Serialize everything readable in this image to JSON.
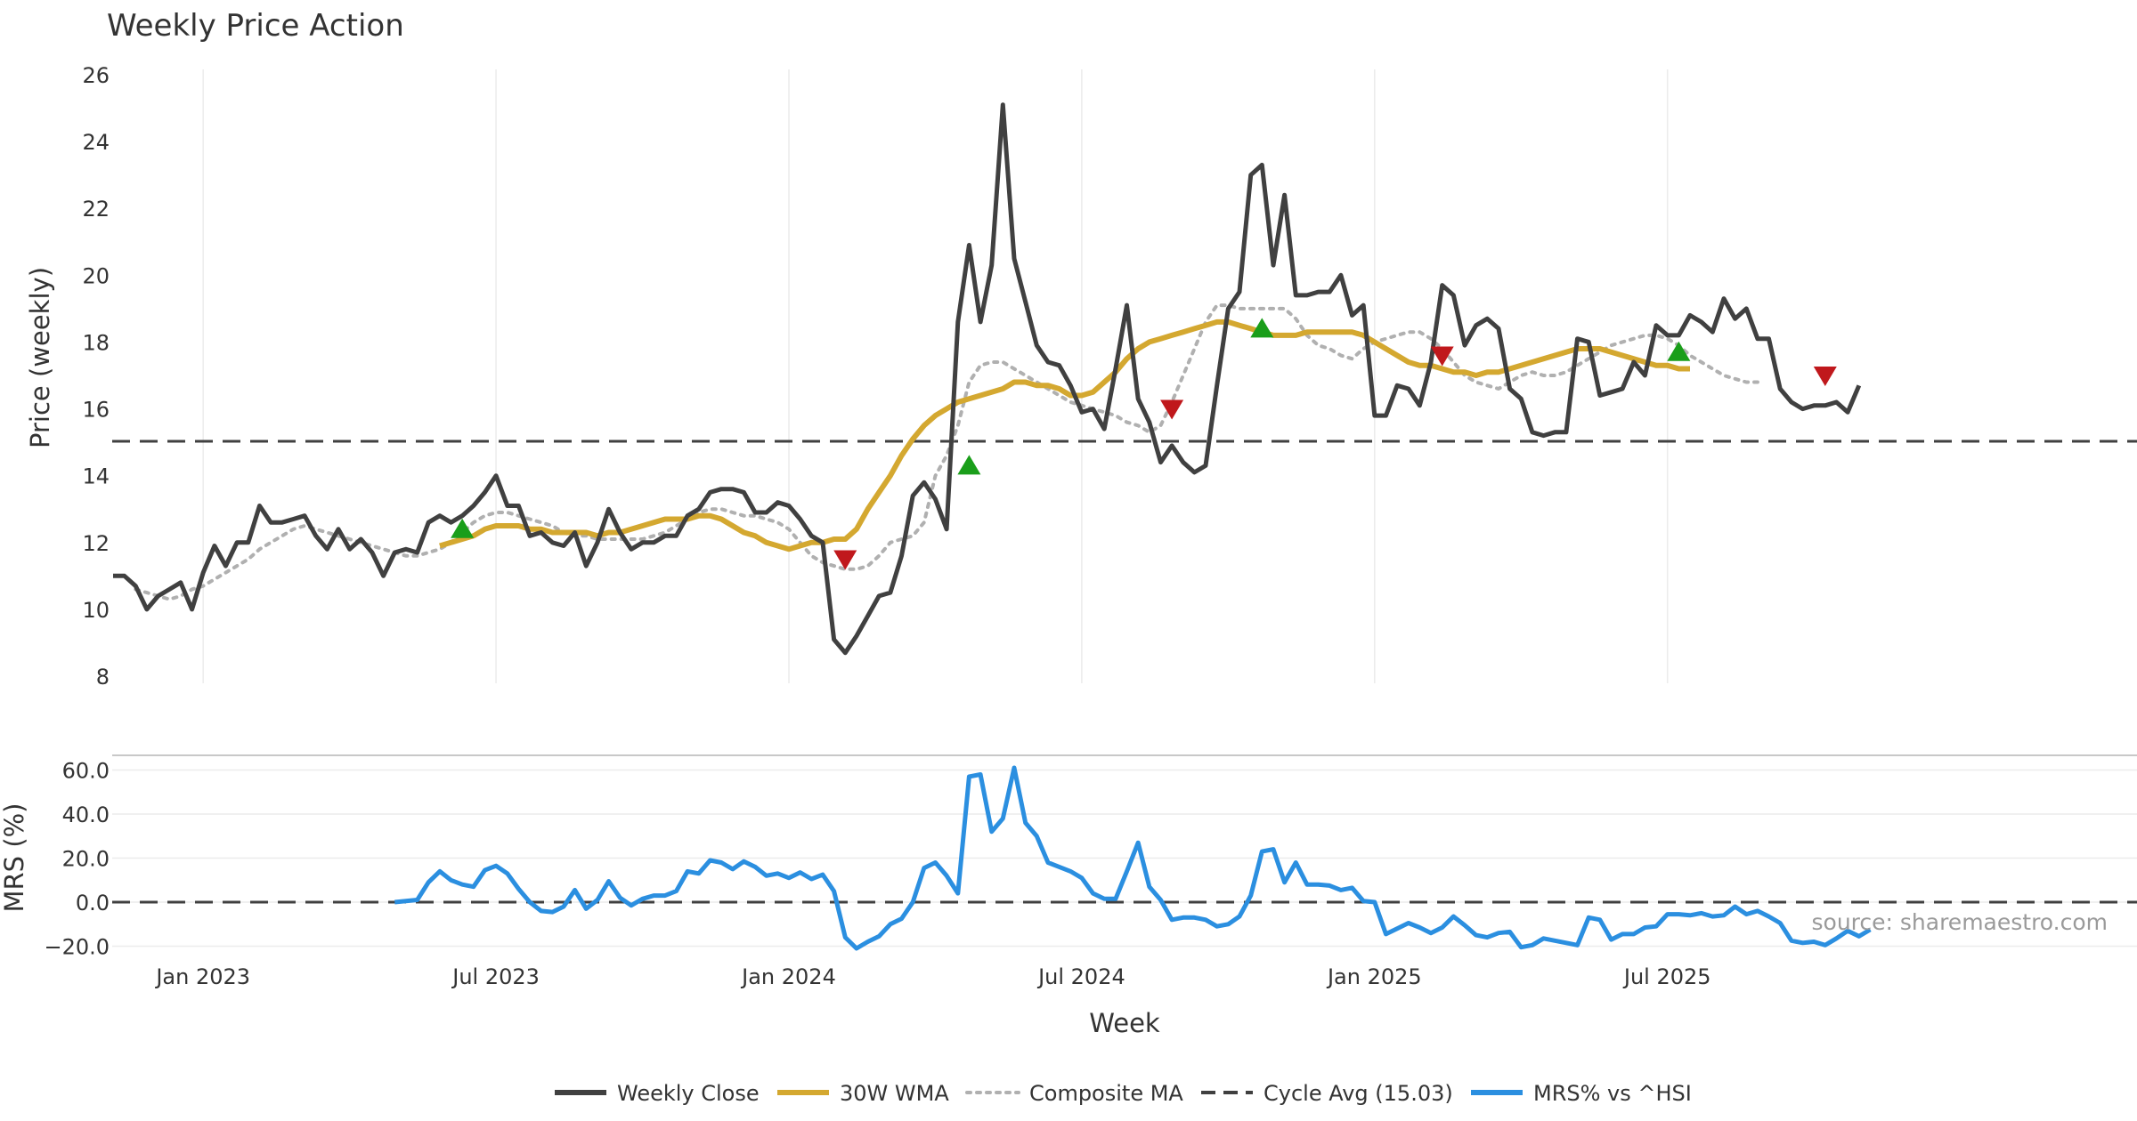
{
  "chart_data": {
    "type": "line",
    "title": "Weekly Price Action",
    "xlabel": "Week",
    "source_note": "source: sharemaestro.com",
    "x_ticks": [
      "Jan 2023",
      "Jul 2023",
      "Jan 2024",
      "Jul 2024",
      "Jan 2025",
      "Jul 2025"
    ],
    "x_domain_weeks": [
      0,
      182
    ],
    "x_tick_weeks": [
      8,
      34,
      60,
      86,
      112,
      138
    ],
    "price_panel": {
      "ylabel": "Price (weekly)",
      "ylim": [
        8,
        26
      ],
      "yticks": [
        "8",
        "10",
        "12",
        "14",
        "16",
        "18",
        "20",
        "22",
        "24",
        "26"
      ],
      "cycle_avg": 15.03,
      "series": [
        {
          "name": "Weekly Close",
          "color": "#404040",
          "start_week": 0,
          "values": [
            11.0,
            11.0,
            10.7,
            10.0,
            10.4,
            10.6,
            10.8,
            10.0,
            11.1,
            11.9,
            11.3,
            12.0,
            12.0,
            13.1,
            12.6,
            12.6,
            12.7,
            12.8,
            12.2,
            11.8,
            12.4,
            11.8,
            12.1,
            11.7,
            11.0,
            11.7,
            11.8,
            11.7,
            12.6,
            12.8,
            12.6,
            12.8,
            13.1,
            13.5,
            14.0,
            13.1,
            13.1,
            12.2,
            12.3,
            12.0,
            11.9,
            12.3,
            11.3,
            12.0,
            13.0,
            12.3,
            11.8,
            12.0,
            12.0,
            12.2,
            12.2,
            12.8,
            13.0,
            13.5,
            13.6,
            13.6,
            13.5,
            12.9,
            12.9,
            13.2,
            13.1,
            12.7,
            12.2,
            12.0,
            9.1,
            8.7,
            9.2,
            9.8,
            10.4,
            10.5,
            11.6,
            13.4,
            13.8,
            13.3,
            12.4,
            18.6,
            20.9,
            18.6,
            20.3,
            25.1,
            20.5,
            19.2,
            17.9,
            17.4,
            17.3,
            16.7,
            15.9,
            16.0,
            15.4,
            17.2,
            19.1,
            16.3,
            15.6,
            14.4,
            14.9,
            14.4,
            14.1,
            14.3,
            16.7,
            19.0,
            19.5,
            23.0,
            23.3,
            20.3,
            22.4,
            19.4,
            19.4,
            19.5,
            19.5,
            20.0,
            18.8,
            19.1,
            15.8,
            15.8,
            16.7,
            16.6,
            16.1,
            17.4,
            19.7,
            19.4,
            17.9,
            18.5,
            18.7,
            18.4,
            16.6,
            16.3,
            15.3,
            15.2,
            15.3,
            15.3,
            18.1,
            18.0,
            16.4,
            16.5,
            16.6,
            17.4,
            17.0,
            18.5,
            18.2,
            18.2,
            18.8,
            18.6,
            18.3,
            19.3,
            18.7,
            19.0,
            18.1,
            18.1,
            16.6,
            16.2,
            16.0,
            16.1,
            16.1,
            16.2,
            15.9,
            16.7
          ]
        },
        {
          "name": "30W WMA",
          "color": "#d4a830",
          "start_week": 29,
          "values": [
            11.9,
            12.0,
            12.1,
            12.2,
            12.4,
            12.5,
            12.5,
            12.5,
            12.4,
            12.4,
            12.3,
            12.3,
            12.3,
            12.3,
            12.2,
            12.3,
            12.3,
            12.4,
            12.5,
            12.6,
            12.7,
            12.7,
            12.7,
            12.8,
            12.8,
            12.7,
            12.5,
            12.3,
            12.2,
            12.0,
            11.9,
            11.8,
            11.9,
            12.0,
            12.0,
            12.1,
            12.1,
            12.4,
            13.0,
            13.5,
            14.0,
            14.6,
            15.1,
            15.5,
            15.8,
            16.0,
            16.2,
            16.3,
            16.4,
            16.5,
            16.6,
            16.8,
            16.8,
            16.7,
            16.7,
            16.6,
            16.4,
            16.4,
            16.5,
            16.8,
            17.1,
            17.5,
            17.8,
            18.0,
            18.1,
            18.2,
            18.3,
            18.4,
            18.5,
            18.6,
            18.6,
            18.5,
            18.4,
            18.3,
            18.2,
            18.2,
            18.2,
            18.3,
            18.3,
            18.3,
            18.3,
            18.3,
            18.2,
            18.0,
            17.8,
            17.6,
            17.4,
            17.3,
            17.3,
            17.2,
            17.1,
            17.1,
            17.0,
            17.1,
            17.1,
            17.2,
            17.3,
            17.4,
            17.5,
            17.6,
            17.7,
            17.8,
            17.8,
            17.8,
            17.7,
            17.6,
            17.5,
            17.4,
            17.3,
            17.3,
            17.2,
            17.2
          ]
        },
        {
          "name": "Composite MA",
          "color": "#b0b0b0",
          "start_week": 2,
          "values": [
            10.6,
            10.5,
            10.4,
            10.3,
            10.4,
            10.6,
            10.7,
            10.9,
            11.1,
            11.3,
            11.5,
            11.8,
            12.0,
            12.2,
            12.4,
            12.5,
            12.4,
            12.3,
            12.2,
            12.1,
            12.0,
            11.9,
            11.8,
            11.7,
            11.6,
            11.6,
            11.7,
            11.8,
            12.0,
            12.3,
            12.6,
            12.8,
            12.9,
            12.9,
            12.8,
            12.7,
            12.6,
            12.5,
            12.3,
            12.2,
            12.2,
            12.1,
            12.1,
            12.1,
            12.1,
            12.1,
            12.2,
            12.3,
            12.5,
            12.7,
            12.9,
            13.0,
            13.0,
            12.9,
            12.8,
            12.8,
            12.7,
            12.6,
            12.4,
            12.0,
            11.6,
            11.4,
            11.3,
            11.2,
            11.2,
            11.3,
            11.6,
            12.0,
            12.1,
            12.2,
            12.6,
            14.0,
            14.6,
            15.5,
            16.8,
            17.3,
            17.4,
            17.4,
            17.2,
            17.0,
            16.8,
            16.6,
            16.4,
            16.2,
            16.1,
            16.0,
            15.9,
            15.8,
            15.6,
            15.5,
            15.3,
            15.5,
            16.2,
            17.0,
            17.8,
            18.6,
            19.1,
            19.1,
            19.0,
            19.0,
            19.0,
            19.0,
            19.0,
            18.7,
            18.2,
            17.9,
            17.8,
            17.6,
            17.5,
            17.8,
            18.0,
            18.1,
            18.2,
            18.3,
            18.3,
            18.1,
            17.8,
            17.4,
            17.0,
            16.8,
            16.7,
            16.6,
            16.8,
            17.0,
            17.1,
            17.0,
            17.0,
            17.1,
            17.3,
            17.5,
            17.7,
            17.9,
            18.0,
            18.1,
            18.2,
            18.2,
            18.1,
            17.9,
            17.6,
            17.4,
            17.2,
            17.0,
            16.9,
            16.8,
            16.8
          ]
        }
      ],
      "buy_signals": [
        {
          "week": 31,
          "value": 12.4
        },
        {
          "week": 76,
          "value": 14.3
        },
        {
          "week": 102,
          "value": 18.4
        },
        {
          "week": 139,
          "value": 17.7
        }
      ],
      "sell_signals": [
        {
          "week": 65,
          "value": 11.5
        },
        {
          "week": 94,
          "value": 16.0
        },
        {
          "week": 118,
          "value": 17.6
        },
        {
          "week": 152,
          "value": 17.0
        }
      ]
    },
    "mrs_panel": {
      "ylabel": "MRS (%)",
      "ylim": [
        -25,
        65
      ],
      "yticks": [
        "60.0",
        "40.0",
        "20.0",
        "0.0",
        "−20.0"
      ],
      "series": [
        {
          "name": "MRS% vs ^HSI",
          "color": "#2b8fe0",
          "start_week": 25,
          "values": [
            0.0,
            0.5,
            1.0,
            9.0,
            14.0,
            10.0,
            8.0,
            7.0,
            14.5,
            16.5,
            13.0,
            6.0,
            0.0,
            -4.0,
            -4.5,
            -2.0,
            5.5,
            -3.0,
            1.0,
            9.5,
            2.0,
            -1.5,
            1.5,
            3.0,
            3.0,
            5.0,
            14.0,
            13.0,
            19.0,
            18.0,
            15.0,
            18.5,
            16.0,
            12.0,
            13.0,
            11.0,
            13.5,
            10.5,
            12.5,
            5.0,
            -16.0,
            -21.0,
            -18.0,
            -15.5,
            -10.0,
            -7.5,
            0.0,
            15.5,
            18.0,
            12.0,
            4.0,
            57.0,
            58.0,
            32.0,
            38.0,
            61.0,
            36.0,
            30.0,
            18.0,
            16.0,
            14.0,
            11.0,
            4.0,
            1.5,
            1.5,
            14.0,
            27.0,
            7.0,
            1.0,
            -8.0,
            -7.0,
            -7.0,
            -8.0,
            -11.0,
            -10.0,
            -6.5,
            3.0,
            23.0,
            24.0,
            9.0,
            18.0,
            8.0,
            8.0,
            7.5,
            5.5,
            6.5,
            0.5,
            0.0,
            -14.5,
            -12.0,
            -9.5,
            -11.5,
            -14.0,
            -11.5,
            -6.5,
            -10.5,
            -15.0,
            -16.0,
            -14.0,
            -13.5,
            -20.5,
            -19.5,
            -16.5,
            -17.5,
            -18.5,
            -19.5,
            -7.0,
            -8.0,
            -17.0,
            -14.5,
            -14.5,
            -11.5,
            -11.0,
            -5.5,
            -5.5,
            -6.0,
            -5.0,
            -6.5,
            -6.0,
            -2.0,
            -5.5,
            -4.0,
            -6.5,
            -9.5,
            -17.5,
            -18.5,
            -18.0,
            -19.5,
            -16.5,
            -13.0,
            -15.5,
            -12.5
          ]
        }
      ]
    },
    "legend": [
      {
        "label": "Weekly Close",
        "style": "solid",
        "color": "#404040"
      },
      {
        "label": "30W WMA",
        "style": "solid",
        "color": "#d4a830"
      },
      {
        "label": "Composite MA",
        "style": "dotted",
        "color": "#b0b0b0"
      },
      {
        "label": "Cycle Avg (15.03)",
        "style": "dashed",
        "color": "#404040"
      },
      {
        "label": "MRS% vs ^HSI",
        "style": "solid",
        "color": "#2b8fe0"
      }
    ]
  }
}
